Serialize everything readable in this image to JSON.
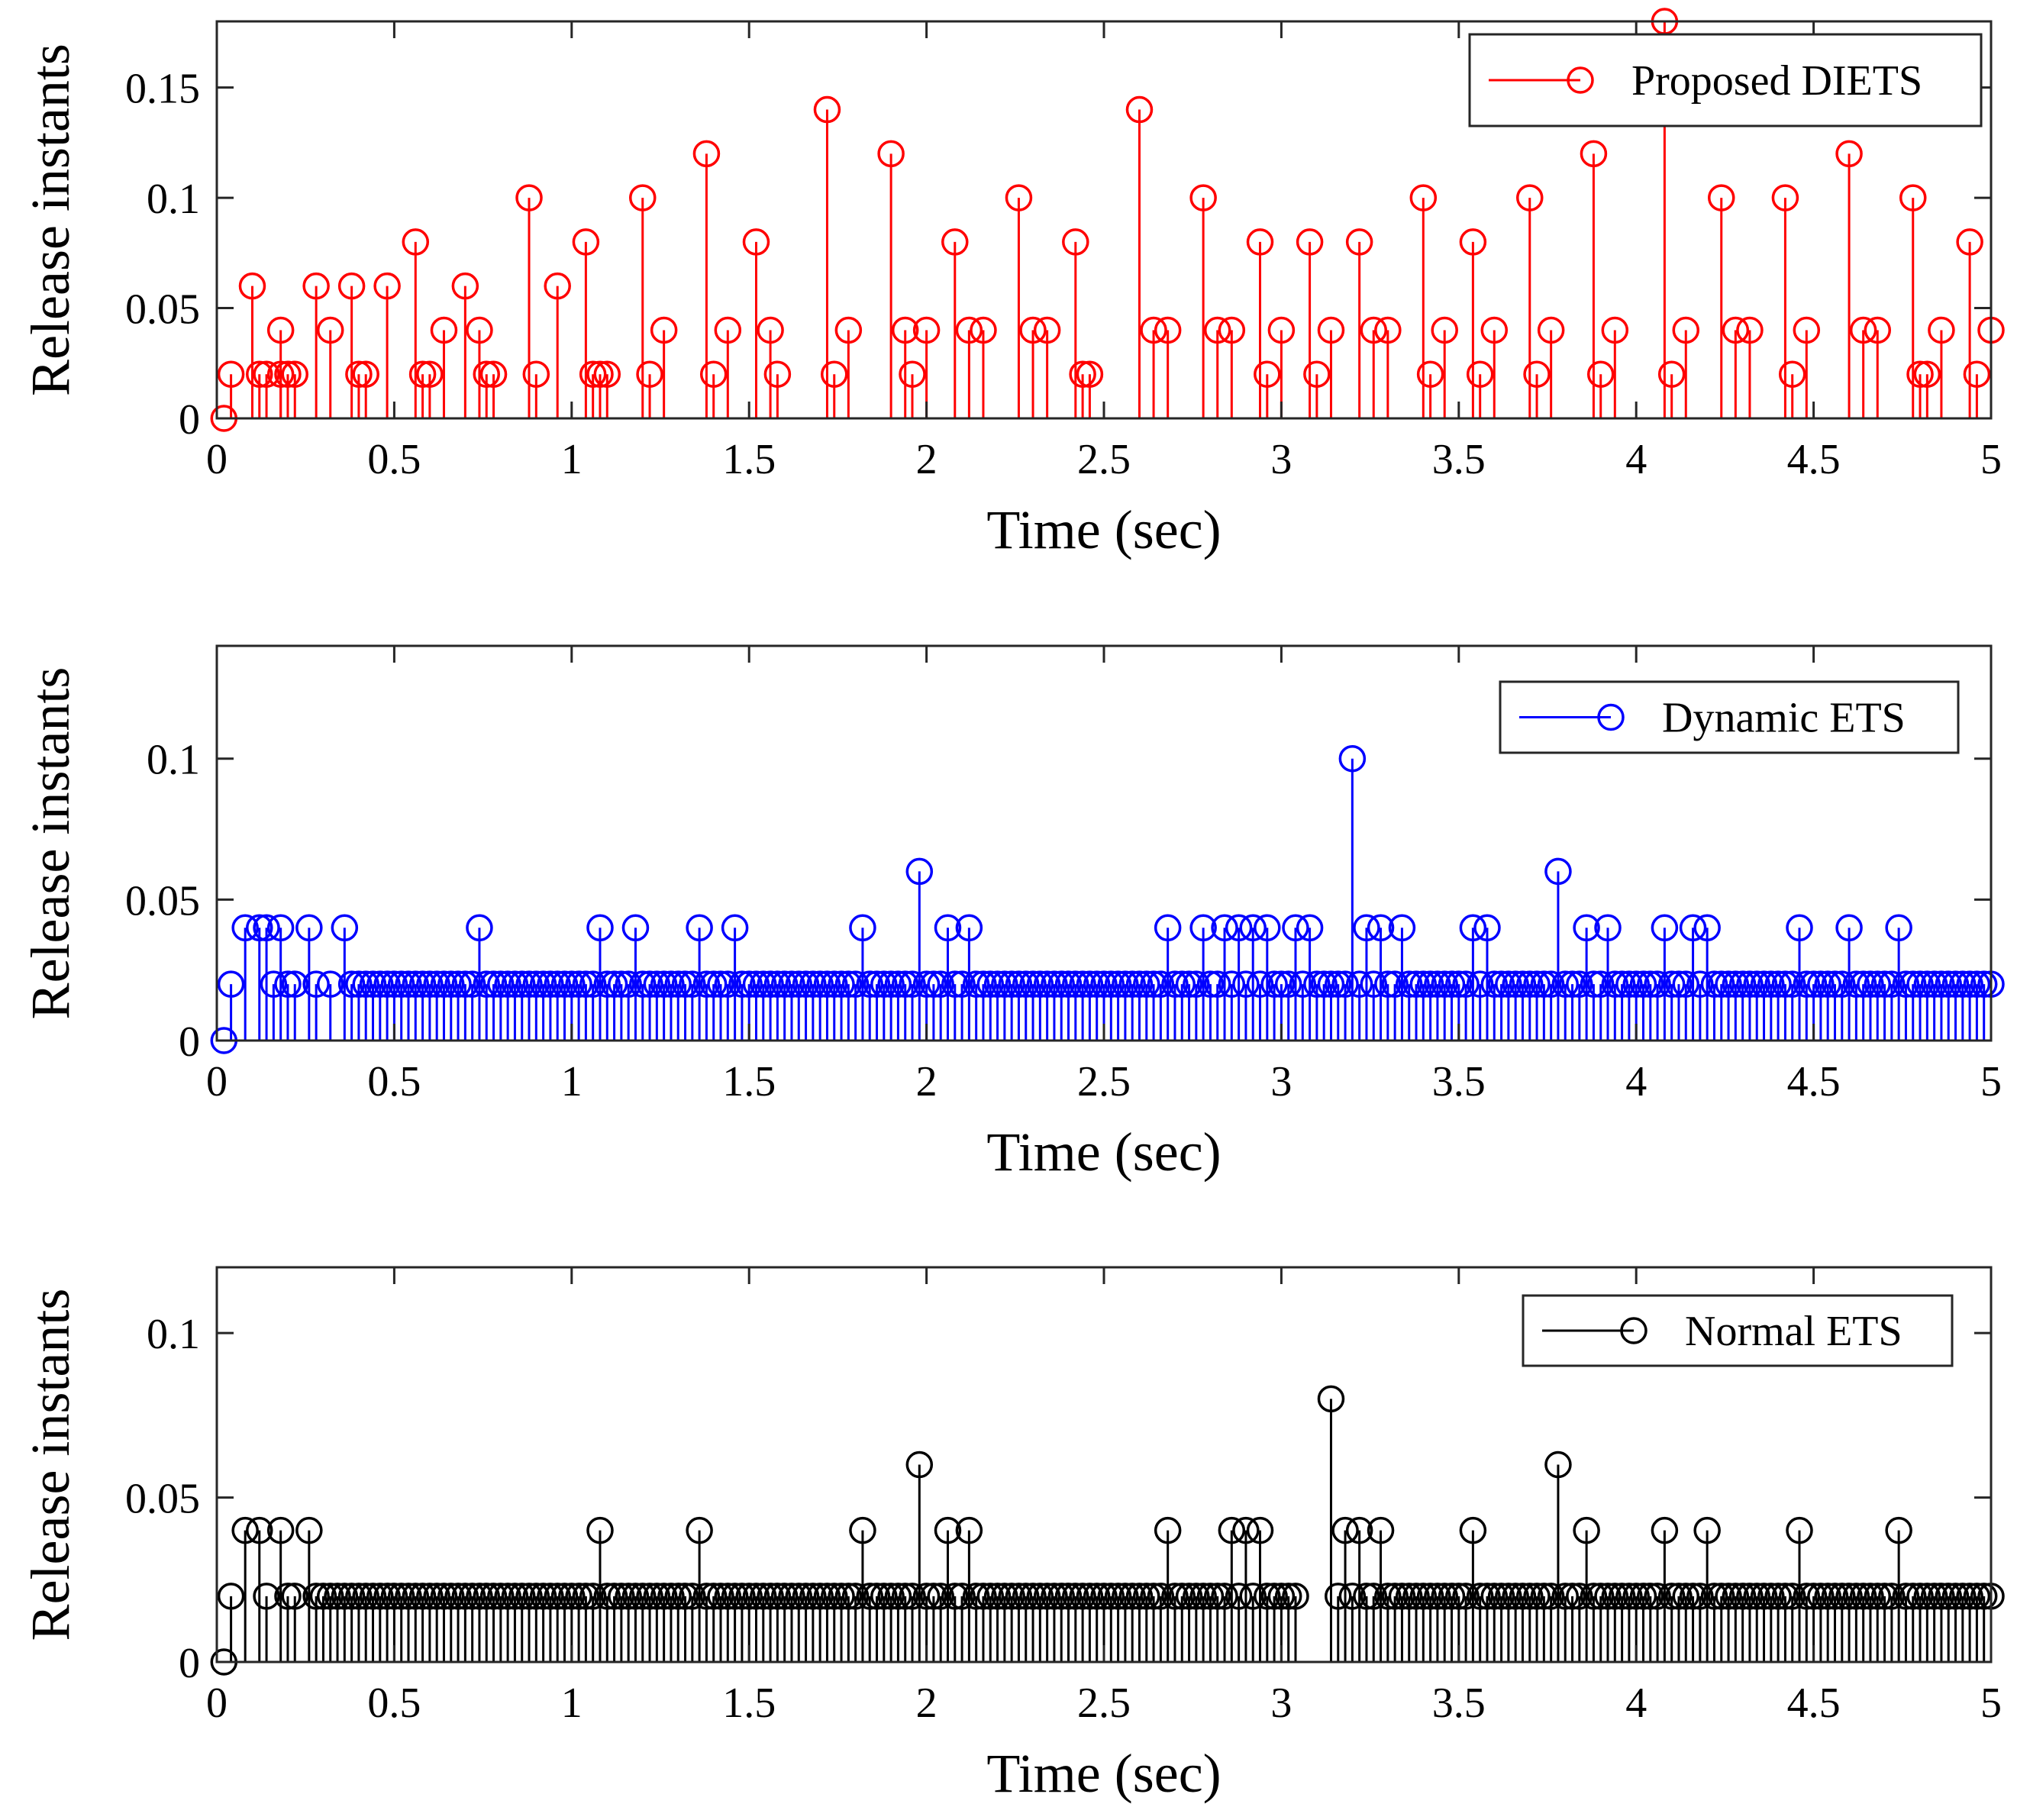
{
  "chart_data": [
    {
      "type": "stem",
      "color": "#ff0000",
      "legend": "Proposed DIETS",
      "xlabel": "Time (sec)",
      "ylabel": "Release instants",
      "xlim": [
        0,
        5
      ],
      "ylim": [
        0,
        0.18
      ],
      "xticks": [
        0,
        0.5,
        1,
        1.5,
        2,
        2.5,
        3,
        3.5,
        4,
        4.5,
        5
      ],
      "yticks": [
        0,
        0.05,
        0.1,
        0.15
      ],
      "xtick_labels": [
        "0",
        "0.5",
        "1",
        "1.5",
        "2",
        "2.5",
        "3",
        "3.5",
        "4",
        "4.5",
        "5"
      ],
      "ytick_labels": [
        "0",
        "0.05",
        "0.1",
        "0.15"
      ],
      "points": [
        [
          0.02,
          0
        ],
        [
          0.04,
          0.02
        ],
        [
          0.1,
          0.06
        ],
        [
          0.12,
          0.02
        ],
        [
          0.14,
          0.02
        ],
        [
          0.18,
          0.04
        ],
        [
          0.18,
          0.02
        ],
        [
          0.2,
          0.02
        ],
        [
          0.22,
          0.02
        ],
        [
          0.28,
          0.06
        ],
        [
          0.32,
          0.04
        ],
        [
          0.38,
          0.06
        ],
        [
          0.4,
          0.02
        ],
        [
          0.42,
          0.02
        ],
        [
          0.48,
          0.06
        ],
        [
          0.56,
          0.08
        ],
        [
          0.58,
          0.02
        ],
        [
          0.6,
          0.02
        ],
        [
          0.64,
          0.04
        ],
        [
          0.7,
          0.06
        ],
        [
          0.74,
          0.04
        ],
        [
          0.76,
          0.02
        ],
        [
          0.78,
          0.02
        ],
        [
          0.88,
          0.1
        ],
        [
          0.9,
          0.02
        ],
        [
          0.96,
          0.06
        ],
        [
          1.04,
          0.08
        ],
        [
          1.06,
          0.02
        ],
        [
          1.08,
          0.02
        ],
        [
          1.1,
          0.02
        ],
        [
          1.2,
          0.1
        ],
        [
          1.22,
          0.02
        ],
        [
          1.26,
          0.04
        ],
        [
          1.38,
          0.12
        ],
        [
          1.4,
          0.02
        ],
        [
          1.44,
          0.04
        ],
        [
          1.52,
          0.08
        ],
        [
          1.56,
          0.04
        ],
        [
          1.58,
          0.02
        ],
        [
          1.72,
          0.14
        ],
        [
          1.74,
          0.02
        ],
        [
          1.78,
          0.04
        ],
        [
          1.9,
          0.12
        ],
        [
          1.94,
          0.04
        ],
        [
          1.96,
          0.02
        ],
        [
          2.0,
          0.04
        ],
        [
          2.08,
          0.08
        ],
        [
          2.12,
          0.04
        ],
        [
          2.16,
          0.04
        ],
        [
          2.26,
          0.1
        ],
        [
          2.3,
          0.04
        ],
        [
          2.34,
          0.04
        ],
        [
          2.42,
          0.08
        ],
        [
          2.44,
          0.02
        ],
        [
          2.46,
          0.02
        ],
        [
          2.6,
          0.14
        ],
        [
          2.64,
          0.04
        ],
        [
          2.68,
          0.04
        ],
        [
          2.78,
          0.1
        ],
        [
          2.82,
          0.04
        ],
        [
          2.86,
          0.04
        ],
        [
          2.94,
          0.08
        ],
        [
          2.96,
          0.02
        ],
        [
          3.0,
          0.04
        ],
        [
          3.08,
          0.08
        ],
        [
          3.1,
          0.02
        ],
        [
          3.14,
          0.04
        ],
        [
          3.22,
          0.08
        ],
        [
          3.26,
          0.04
        ],
        [
          3.3,
          0.04
        ],
        [
          3.4,
          0.1
        ],
        [
          3.42,
          0.02
        ],
        [
          3.46,
          0.04
        ],
        [
          3.54,
          0.08
        ],
        [
          3.56,
          0.02
        ],
        [
          3.6,
          0.04
        ],
        [
          3.7,
          0.1
        ],
        [
          3.72,
          0.02
        ],
        [
          3.76,
          0.04
        ],
        [
          3.88,
          0.12
        ],
        [
          3.9,
          0.02
        ],
        [
          3.94,
          0.04
        ],
        [
          4.08,
          0.18
        ],
        [
          4.1,
          0.02
        ],
        [
          4.14,
          0.04
        ],
        [
          4.24,
          0.1
        ],
        [
          4.28,
          0.04
        ],
        [
          4.32,
          0.04
        ],
        [
          4.42,
          0.1
        ],
        [
          4.44,
          0.02
        ],
        [
          4.48,
          0.04
        ],
        [
          4.6,
          0.12
        ],
        [
          4.64,
          0.04
        ],
        [
          4.68,
          0.04
        ],
        [
          4.78,
          0.1
        ],
        [
          4.8,
          0.02
        ],
        [
          4.82,
          0.02
        ],
        [
          4.86,
          0.04
        ],
        [
          4.94,
          0.08
        ],
        [
          4.96,
          0.02
        ],
        [
          5.0,
          0.04
        ]
      ]
    },
    {
      "type": "stem",
      "color": "#0000ff",
      "legend": "Dynamic ETS",
      "xlabel": "Time (sec)",
      "ylabel": "Release instants",
      "xlim": [
        0,
        5
      ],
      "ylim": [
        0,
        0.14
      ],
      "xticks": [
        0,
        0.5,
        1,
        1.5,
        2,
        2.5,
        3,
        3.5,
        4,
        4.5,
        5
      ],
      "yticks": [
        0,
        0.05,
        0.1
      ],
      "xtick_labels": [
        "0",
        "0.5",
        "1",
        "1.5",
        "2",
        "2.5",
        "3",
        "3.5",
        "4",
        "4.5",
        "5"
      ],
      "ytick_labels": [
        "0",
        "0.05",
        "0.1"
      ],
      "points": [
        [
          0.02,
          0
        ],
        [
          0.04,
          0.02
        ],
        [
          0.08,
          0.04
        ],
        [
          0.12,
          0.04
        ],
        [
          0.14,
          0.04
        ],
        [
          0.16,
          0.02
        ],
        [
          0.18,
          0.04
        ],
        [
          0.2,
          0.02
        ],
        [
          0.22,
          0.02
        ],
        [
          0.26,
          0.04
        ],
        [
          0.28,
          0.02
        ],
        [
          0.32,
          0.02
        ],
        [
          0.36,
          0.04
        ],
        [
          0.38,
          0.02
        ],
        [
          0.74,
          0.04
        ],
        [
          1.08,
          0.04
        ],
        [
          1.12,
          0.02
        ],
        [
          1.18,
          0.04
        ],
        [
          1.36,
          0.04
        ],
        [
          1.46,
          0.04
        ],
        [
          1.82,
          0.04
        ],
        [
          1.98,
          0.06
        ],
        [
          2.0,
          0.02
        ],
        [
          2.06,
          0.04
        ],
        [
          2.08,
          0.02
        ],
        [
          2.12,
          0.04
        ],
        [
          2.68,
          0.04
        ],
        [
          2.78,
          0.04
        ],
        [
          2.84,
          0.04
        ],
        [
          2.88,
          0.04
        ],
        [
          2.92,
          0.04
        ],
        [
          2.96,
          0.04
        ],
        [
          3.04,
          0.04
        ],
        [
          3.08,
          0.04
        ],
        [
          3.2,
          0.1
        ],
        [
          3.24,
          0.04
        ],
        [
          3.28,
          0.04
        ],
        [
          3.3,
          0.02
        ],
        [
          3.34,
          0.04
        ],
        [
          3.54,
          0.04
        ],
        [
          3.58,
          0.04
        ],
        [
          3.78,
          0.06
        ],
        [
          3.8,
          0.02
        ],
        [
          3.86,
          0.04
        ],
        [
          3.92,
          0.04
        ],
        [
          4.08,
          0.04
        ],
        [
          4.16,
          0.04
        ],
        [
          4.2,
          0.04
        ],
        [
          4.46,
          0.04
        ],
        [
          4.6,
          0.04
        ],
        [
          4.74,
          0.04
        ]
      ],
      "baseline_stems": {
        "start": 0.4,
        "end": 5.0,
        "step": 0.02,
        "value": 0.02
      }
    },
    {
      "type": "stem",
      "color": "#000000",
      "legend": "Normal ETS",
      "xlabel": "Time (sec)",
      "ylabel": "Release instants",
      "xlim": [
        0,
        5
      ],
      "ylim": [
        0,
        0.12
      ],
      "xticks": [
        0,
        0.5,
        1,
        1.5,
        2,
        2.5,
        3,
        3.5,
        4,
        4.5,
        5
      ],
      "yticks": [
        0,
        0.05,
        0.1
      ],
      "xtick_labels": [
        "0",
        "0.5",
        "1",
        "1.5",
        "2",
        "2.5",
        "3",
        "3.5",
        "4",
        "4.5",
        "5"
      ],
      "ytick_labels": [
        "0",
        "0.05",
        "0.1"
      ],
      "points": [
        [
          0.02,
          0
        ],
        [
          0.04,
          0.02
        ],
        [
          0.08,
          0.04
        ],
        [
          0.12,
          0.04
        ],
        [
          0.14,
          0.02
        ],
        [
          0.18,
          0.04
        ],
        [
          0.2,
          0.02
        ],
        [
          0.22,
          0.02
        ],
        [
          0.26,
          0.04
        ],
        [
          0.28,
          0.02
        ],
        [
          1.08,
          0.04
        ],
        [
          1.36,
          0.04
        ],
        [
          1.82,
          0.04
        ],
        [
          1.98,
          0.06
        ],
        [
          2.0,
          0.02
        ],
        [
          2.06,
          0.04
        ],
        [
          2.08,
          0.02
        ],
        [
          2.12,
          0.04
        ],
        [
          2.68,
          0.04
        ],
        [
          2.86,
          0.04
        ],
        [
          2.9,
          0.04
        ],
        [
          2.94,
          0.04
        ],
        [
          3.14,
          0.08
        ],
        [
          3.18,
          0.04
        ],
        [
          3.22,
          0.04
        ],
        [
          3.24,
          0.02
        ],
        [
          3.28,
          0.04
        ],
        [
          3.54,
          0.04
        ],
        [
          3.78,
          0.06
        ],
        [
          3.8,
          0.02
        ],
        [
          3.86,
          0.04
        ],
        [
          4.08,
          0.04
        ],
        [
          4.2,
          0.04
        ],
        [
          4.46,
          0.04
        ],
        [
          4.74,
          0.04
        ]
      ],
      "baseline_stems": {
        "start": 0.3,
        "end": 5.0,
        "step": 0.02,
        "value": 0.02,
        "gaps": [
          [
            3.04,
            3.16
          ]
        ]
      }
    }
  ]
}
